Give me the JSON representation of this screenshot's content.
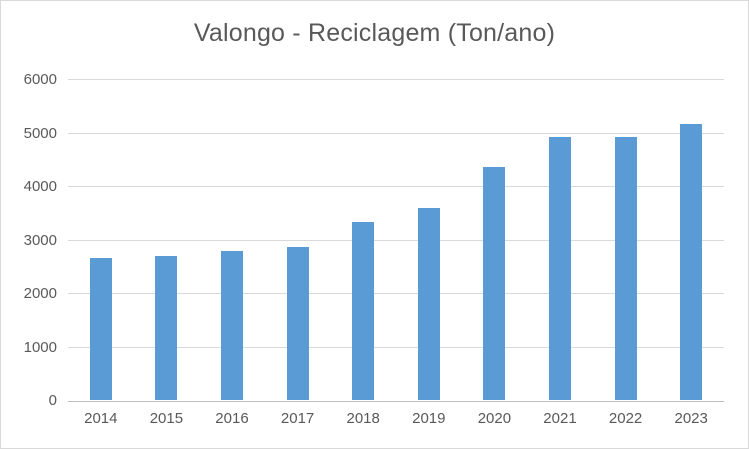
{
  "window": {
    "background": "#ffffff",
    "border_color": "#d9d9d9"
  },
  "chart_data": {
    "type": "bar",
    "title": "Valongo - Reciclagem (Ton/ano)",
    "categories": [
      "2014",
      "2015",
      "2016",
      "2017",
      "2018",
      "2019",
      "2020",
      "2021",
      "2022",
      "2023"
    ],
    "values": [
      2650,
      2690,
      2780,
      2860,
      3330,
      3590,
      4360,
      4920,
      4920,
      5150
    ],
    "series_name": "Reciclagem (Ton/ano)",
    "xlabel": "",
    "ylabel": "",
    "ylim": [
      0,
      6000
    ],
    "ytick_interval": 1000,
    "ytick_labels": [
      "0",
      "1000",
      "2000",
      "3000",
      "4000",
      "5000",
      "6000"
    ],
    "grid": true,
    "legend_position": "none",
    "bar_color": "#5b9bd5",
    "gridline_color": "#d9d9d9",
    "axis_line_color": "#bfbfbf",
    "text_color": "#595959"
  }
}
